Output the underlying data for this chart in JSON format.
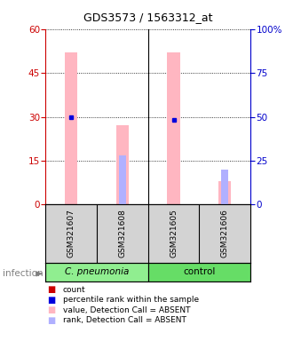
{
  "title": "GDS3573 / 1563312_at",
  "samples": [
    "GSM321607",
    "GSM321608",
    "GSM321605",
    "GSM321606"
  ],
  "values_absent": [
    52,
    27,
    52,
    8
  ],
  "ranks_present_pct": [
    50,
    null,
    48,
    null
  ],
  "ranks_absent_pct": [
    null,
    28,
    null,
    20
  ],
  "bar_color_absent": "#ffb6c1",
  "rank_color_present": "#0000dd",
  "rank_color_absent": "#b0b0ff",
  "left_axis_color": "#cc0000",
  "right_axis_color": "#0000cc",
  "ylim_left": [
    0,
    60
  ],
  "ylim_right": [
    0,
    100
  ],
  "yticks_left": [
    0,
    15,
    30,
    45,
    60
  ],
  "yticks_right": [
    0,
    25,
    50,
    75,
    100
  ],
  "group1_label": "C. pneumonia",
  "group2_label": "control",
  "group1_color": "#90ee90",
  "group2_color": "#66dd66",
  "infection_label": "infection",
  "title_fontsize": 9,
  "legend_items": [
    {
      "label": "count",
      "color": "#cc0000"
    },
    {
      "label": "percentile rank within the sample",
      "color": "#0000dd"
    },
    {
      "label": "value, Detection Call = ABSENT",
      "color": "#ffb6c1"
    },
    {
      "label": "rank, Detection Call = ABSENT",
      "color": "#b0b0ff"
    }
  ],
  "bar_width": 0.25
}
